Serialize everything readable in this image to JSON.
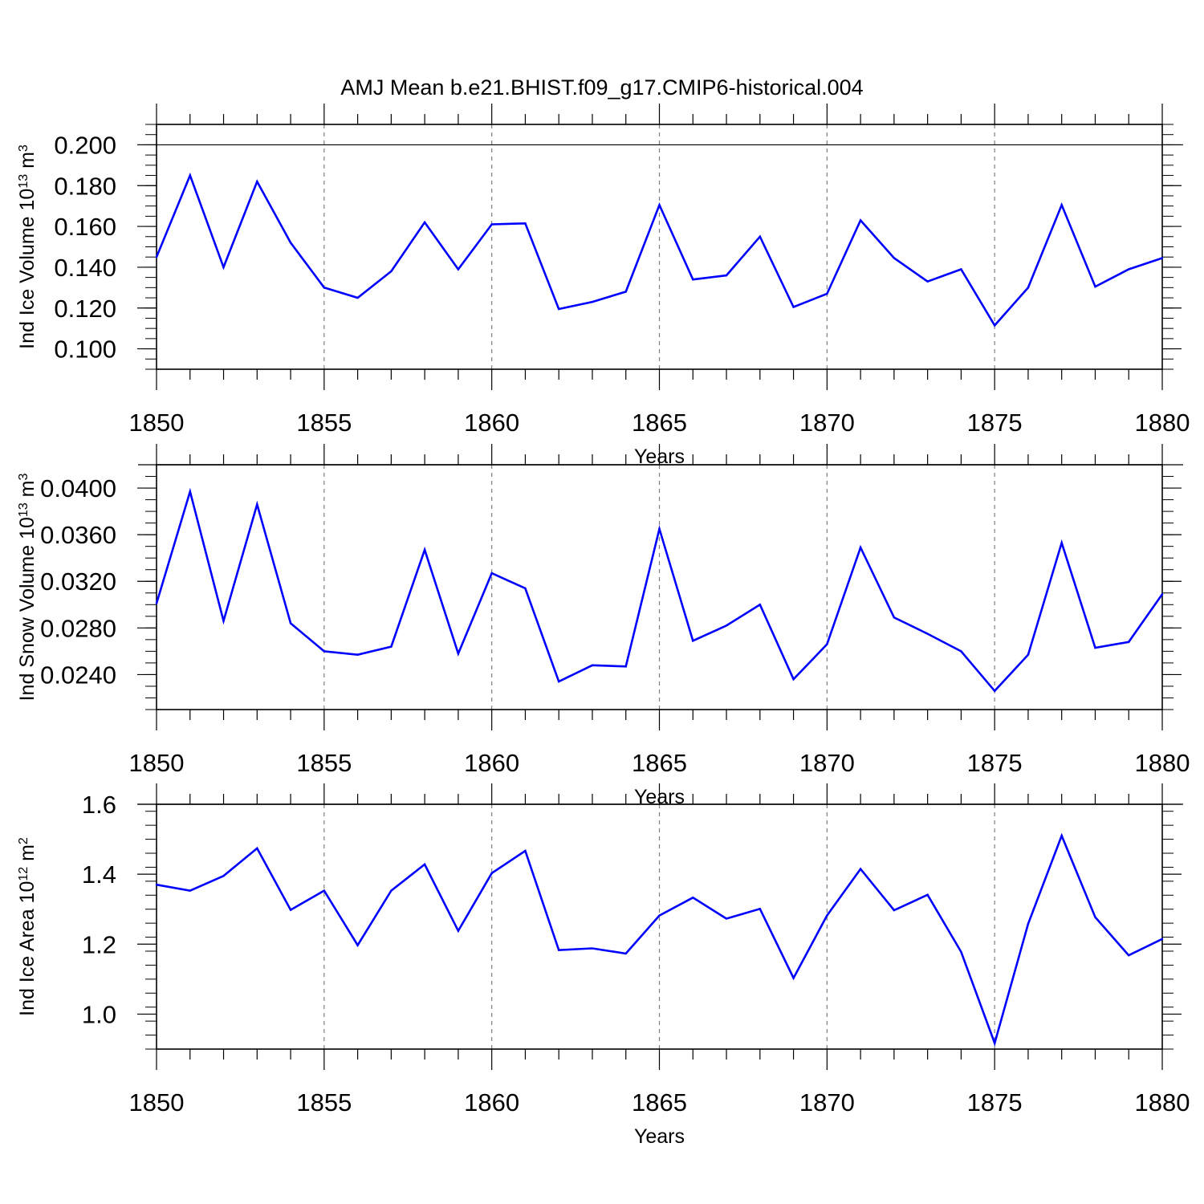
{
  "title": "AMJ Mean b.e21.BHIST.f09_g17.CMIP6-historical.004",
  "colors": {
    "line": "#0000ff",
    "axis": "#000000",
    "grid": "#808080"
  },
  "chart_data": [
    {
      "type": "line",
      "ylabel": "Ind Ice Volume 10",
      "ylabel_exp": "13",
      "ylabel_unit": " m",
      "ylabel_unit_exp": "3",
      "xlabel": "Years",
      "xlim": [
        1850,
        1880
      ],
      "ylim": [
        0.09,
        0.21
      ],
      "x_ticks": [
        1850,
        1855,
        1860,
        1865,
        1870,
        1875,
        1880
      ],
      "y_ticks": [
        0.1,
        0.12,
        0.14,
        0.16,
        0.18,
        0.2
      ],
      "y_tick_labels": [
        "0.100",
        "0.120",
        "0.140",
        "0.160",
        "0.180",
        "0.200"
      ],
      "y_minor_step": 0.005,
      "y_major_line": 0.2,
      "x": [
        1850,
        1851,
        1852,
        1853,
        1854,
        1855,
        1856,
        1857,
        1858,
        1859,
        1860,
        1861,
        1862,
        1863,
        1864,
        1865,
        1866,
        1867,
        1868,
        1869,
        1870,
        1871,
        1872,
        1873,
        1874,
        1875,
        1876,
        1877,
        1878,
        1879,
        1880
      ],
      "values": [
        0.145,
        0.185,
        0.14,
        0.182,
        0.152,
        0.13,
        0.125,
        0.138,
        0.162,
        0.139,
        0.161,
        0.1615,
        0.1195,
        0.123,
        0.128,
        0.1705,
        0.134,
        0.136,
        0.155,
        0.1205,
        0.127,
        0.163,
        0.1445,
        0.133,
        0.139,
        0.1115,
        0.13,
        0.1705,
        0.1305,
        0.139,
        0.1445
      ]
    },
    {
      "type": "line",
      "ylabel": "Ind Snow Volume 10",
      "ylabel_exp": "13",
      "ylabel_unit": " m",
      "ylabel_unit_exp": "3",
      "xlabel": "Years",
      "xlim": [
        1850,
        1880
      ],
      "ylim": [
        0.021,
        0.042
      ],
      "x_ticks": [
        1850,
        1855,
        1860,
        1865,
        1870,
        1875,
        1880
      ],
      "y_ticks": [
        0.024,
        0.028,
        0.032,
        0.036,
        0.04
      ],
      "y_tick_labels": [
        "0.0240",
        "0.0280",
        "0.0320",
        "0.0360",
        "0.0400"
      ],
      "y_minor_step": 0.001,
      "y_major_line": 0.042,
      "x": [
        1850,
        1851,
        1852,
        1853,
        1854,
        1855,
        1856,
        1857,
        1858,
        1859,
        1860,
        1861,
        1862,
        1863,
        1864,
        1865,
        1866,
        1867,
        1868,
        1869,
        1870,
        1871,
        1872,
        1873,
        1874,
        1875,
        1876,
        1877,
        1878,
        1879,
        1880
      ],
      "values": [
        0.0301,
        0.0397,
        0.0286,
        0.0386,
        0.0284,
        0.026,
        0.0257,
        0.0264,
        0.0347,
        0.0258,
        0.0327,
        0.0314,
        0.0234,
        0.0248,
        0.0247,
        0.0365,
        0.0269,
        0.0282,
        0.03,
        0.0236,
        0.0266,
        0.0349,
        0.0289,
        0.0275,
        0.026,
        0.0226,
        0.0257,
        0.0353,
        0.0263,
        0.0268,
        0.0309
      ]
    },
    {
      "type": "line",
      "ylabel": "Ind Ice Area 10",
      "ylabel_exp": "12",
      "ylabel_unit": " m",
      "ylabel_unit_exp": "2",
      "xlabel": "Years",
      "xlim": [
        1850,
        1880
      ],
      "ylim": [
        0.9,
        1.6
      ],
      "x_ticks": [
        1850,
        1855,
        1860,
        1865,
        1870,
        1875,
        1880
      ],
      "y_ticks": [
        1.0,
        1.2,
        1.4,
        1.6
      ],
      "y_tick_labels": [
        "1.0",
        "1.2",
        "1.4",
        "1.6"
      ],
      "y_minor_step": 0.04,
      "y_major_line": 1.6,
      "x": [
        1850,
        1851,
        1852,
        1853,
        1854,
        1855,
        1856,
        1857,
        1858,
        1859,
        1860,
        1861,
        1862,
        1863,
        1864,
        1865,
        1866,
        1867,
        1868,
        1869,
        1870,
        1871,
        1872,
        1873,
        1874,
        1875,
        1876,
        1877,
        1878,
        1879,
        1880
      ],
      "values": [
        1.37,
        1.353,
        1.395,
        1.474,
        1.298,
        1.353,
        1.197,
        1.353,
        1.428,
        1.238,
        1.403,
        1.467,
        1.183,
        1.188,
        1.173,
        1.282,
        1.333,
        1.273,
        1.301,
        1.103,
        1.282,
        1.415,
        1.297,
        1.341,
        1.178,
        0.917,
        1.258,
        1.51,
        1.277,
        1.168,
        1.215
      ]
    }
  ]
}
